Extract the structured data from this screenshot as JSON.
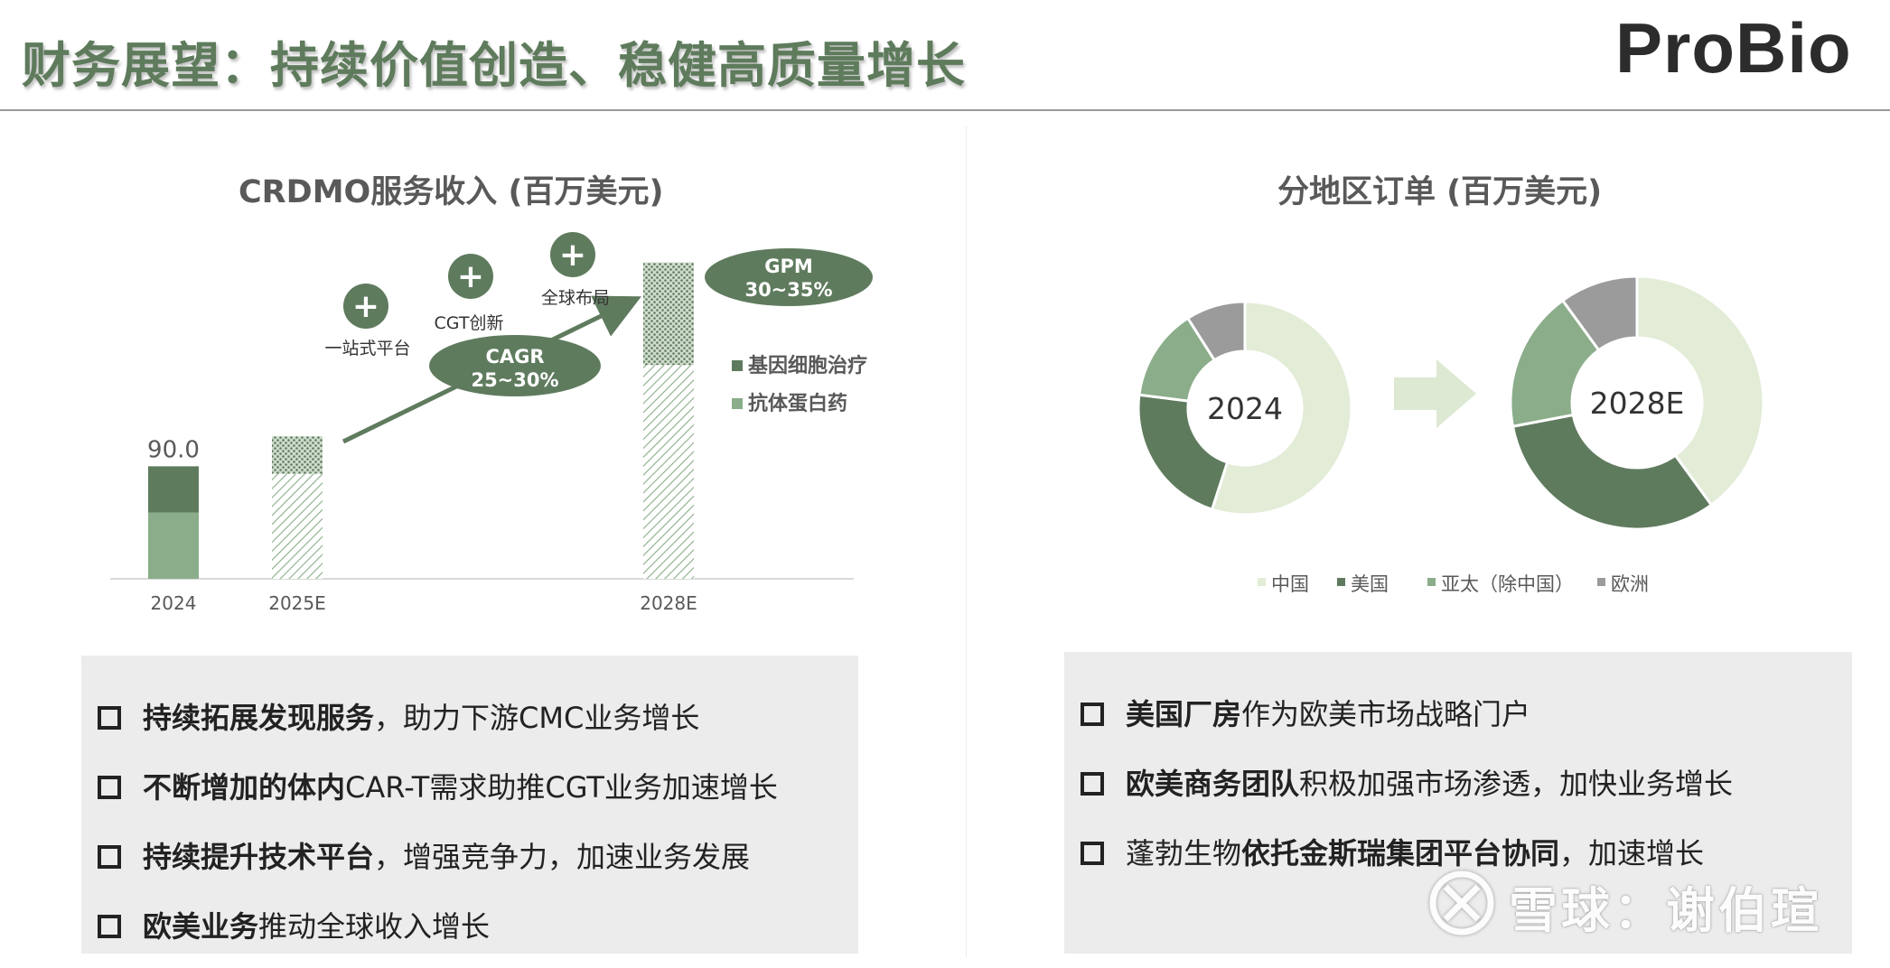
{
  "header": {
    "title": "财务展望：持续价值创造、稳健高质量增长",
    "logo": "ProBio"
  },
  "left_panel": {
    "title": "CRDMO服务收入 (百万美元)",
    "bar_value_label": "90.0",
    "callouts": {
      "plus_symbol": "+",
      "p1": "一站式平台",
      "p2": "CGT创新",
      "p3": "全球布局",
      "cagr_line1": "CAGR",
      "cagr_line2": "25~30%",
      "gpm_line1": "GPM",
      "gpm_line2": "30~35%"
    },
    "bullets": [
      {
        "bold": "持续拓展发现服务",
        "rest": "，助力下游CMC业务增长"
      },
      {
        "bold": "不断增加的体内",
        "rest": "CAR-T需求助推CGT业务加速增长"
      },
      {
        "bold": "持续提升技术平台",
        "rest": "，增强竞争力，加速业务发展"
      },
      {
        "bold": "欧美业务",
        "rest": "推动全球收入增长"
      }
    ]
  },
  "right_panel": {
    "title": "分地区订单 (百万美元)",
    "bullets": [
      {
        "pre": "",
        "bold": "美国厂房",
        "rest": "作为欧美市场战略门户"
      },
      {
        "pre": "",
        "bold": "欧美商务团队",
        "rest": "积极加强市场渗透，加快业务增长"
      },
      {
        "pre": "蓬勃生物",
        "bold": "依托金斯瑞集团平台协同",
        "rest": "，加速增长"
      }
    ]
  },
  "colors": {
    "dark_green": "#5f7b5e",
    "mid_green": "#8bad8a",
    "light_green": "#e2ecd7",
    "grey": "#9b9b9b",
    "arrow_green": "#dde9d2"
  },
  "watermark": {
    "text": "雪球：谢伯瑄"
  },
  "chart_data": [
    {
      "type": "bar",
      "stacked": true,
      "title": "CRDMO服务收入 (百万美元)",
      "categories": [
        "2024",
        "2025E",
        "2028E"
      ],
      "series": [
        {
          "name": "基因细胞治疗",
          "values": [
            37,
            30,
            82
          ],
          "color": "#5f7b5e"
        },
        {
          "name": "抗体蛋白药",
          "values": [
            53,
            84,
            171
          ],
          "color": "#8bad8a"
        }
      ],
      "data_labels": [
        "90.0",
        "",
        ""
      ],
      "ylim": [
        0,
        260
      ],
      "legend": "right",
      "grid": false
    },
    {
      "type": "pie",
      "donut": true,
      "title": "2024",
      "categories": [
        "中国",
        "美国",
        "亚太（除中国）",
        "欧洲"
      ],
      "values": [
        55,
        22,
        14,
        9
      ],
      "colors": [
        "#e2ecd7",
        "#5f7b5e",
        "#8bad8a",
        "#9b9b9b"
      ]
    },
    {
      "type": "pie",
      "donut": true,
      "title": "2028E",
      "categories": [
        "中国",
        "美国",
        "亚太（除中国）",
        "欧洲"
      ],
      "values": [
        40,
        32,
        18,
        10
      ],
      "colors": [
        "#e2ecd7",
        "#5f7b5e",
        "#8bad8a",
        "#9b9b9b"
      ]
    }
  ]
}
